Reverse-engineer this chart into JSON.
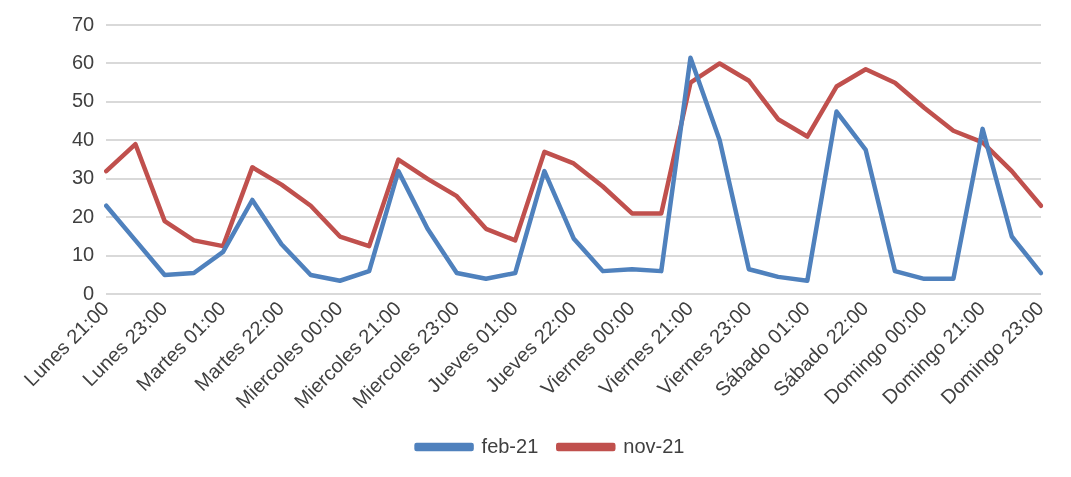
{
  "chart_data": {
    "type": "line",
    "categories": [
      "Lunes 21:00",
      null,
      "Lunes 23:00",
      null,
      "Martes 01:00",
      null,
      "Martes 22:00",
      null,
      "Miercoles 00:00",
      null,
      "Miercoles 21:00",
      null,
      "Miercoles 23:00",
      null,
      "Jueves 01:00",
      null,
      "Jueves 22:00",
      null,
      "Viernes 00:00",
      null,
      "Viernes 21:00",
      null,
      "Viernes 23:00",
      null,
      "Sábado 01:00",
      null,
      "Sábado 22:00",
      null,
      "Domingo 00:00",
      null,
      "Domingo 21:00",
      null,
      "Domingo 23:00"
    ],
    "series": [
      {
        "name": "feb-21",
        "color": "#4f81bd",
        "values": [
          23,
          14,
          5,
          5.5,
          11,
          24.5,
          13,
          5,
          3.5,
          6,
          32,
          17,
          5.5,
          4,
          5.5,
          32,
          14.5,
          6,
          6.5,
          6,
          61.5,
          40,
          6.5,
          4.5,
          3.5,
          47.5,
          37.5,
          6,
          4,
          4,
          43,
          15,
          5.5
        ]
      },
      {
        "name": "nov-21",
        "color": "#c0504d",
        "values": [
          32,
          39,
          19,
          14,
          12.5,
          33,
          28.5,
          23,
          15,
          12.5,
          35,
          30,
          25.5,
          17,
          14,
          37,
          34,
          28,
          21,
          21,
          55,
          60,
          55.5,
          45.5,
          41,
          54,
          58.5,
          55,
          48.5,
          42.5,
          39.5,
          32,
          23
        ]
      }
    ],
    "ylim": [
      0,
      70
    ],
    "yticks": [
      0,
      10,
      20,
      30,
      40,
      50,
      60,
      70
    ],
    "grid": "y",
    "legend": "bottom",
    "marker": "none",
    "line_style": "solid"
  }
}
